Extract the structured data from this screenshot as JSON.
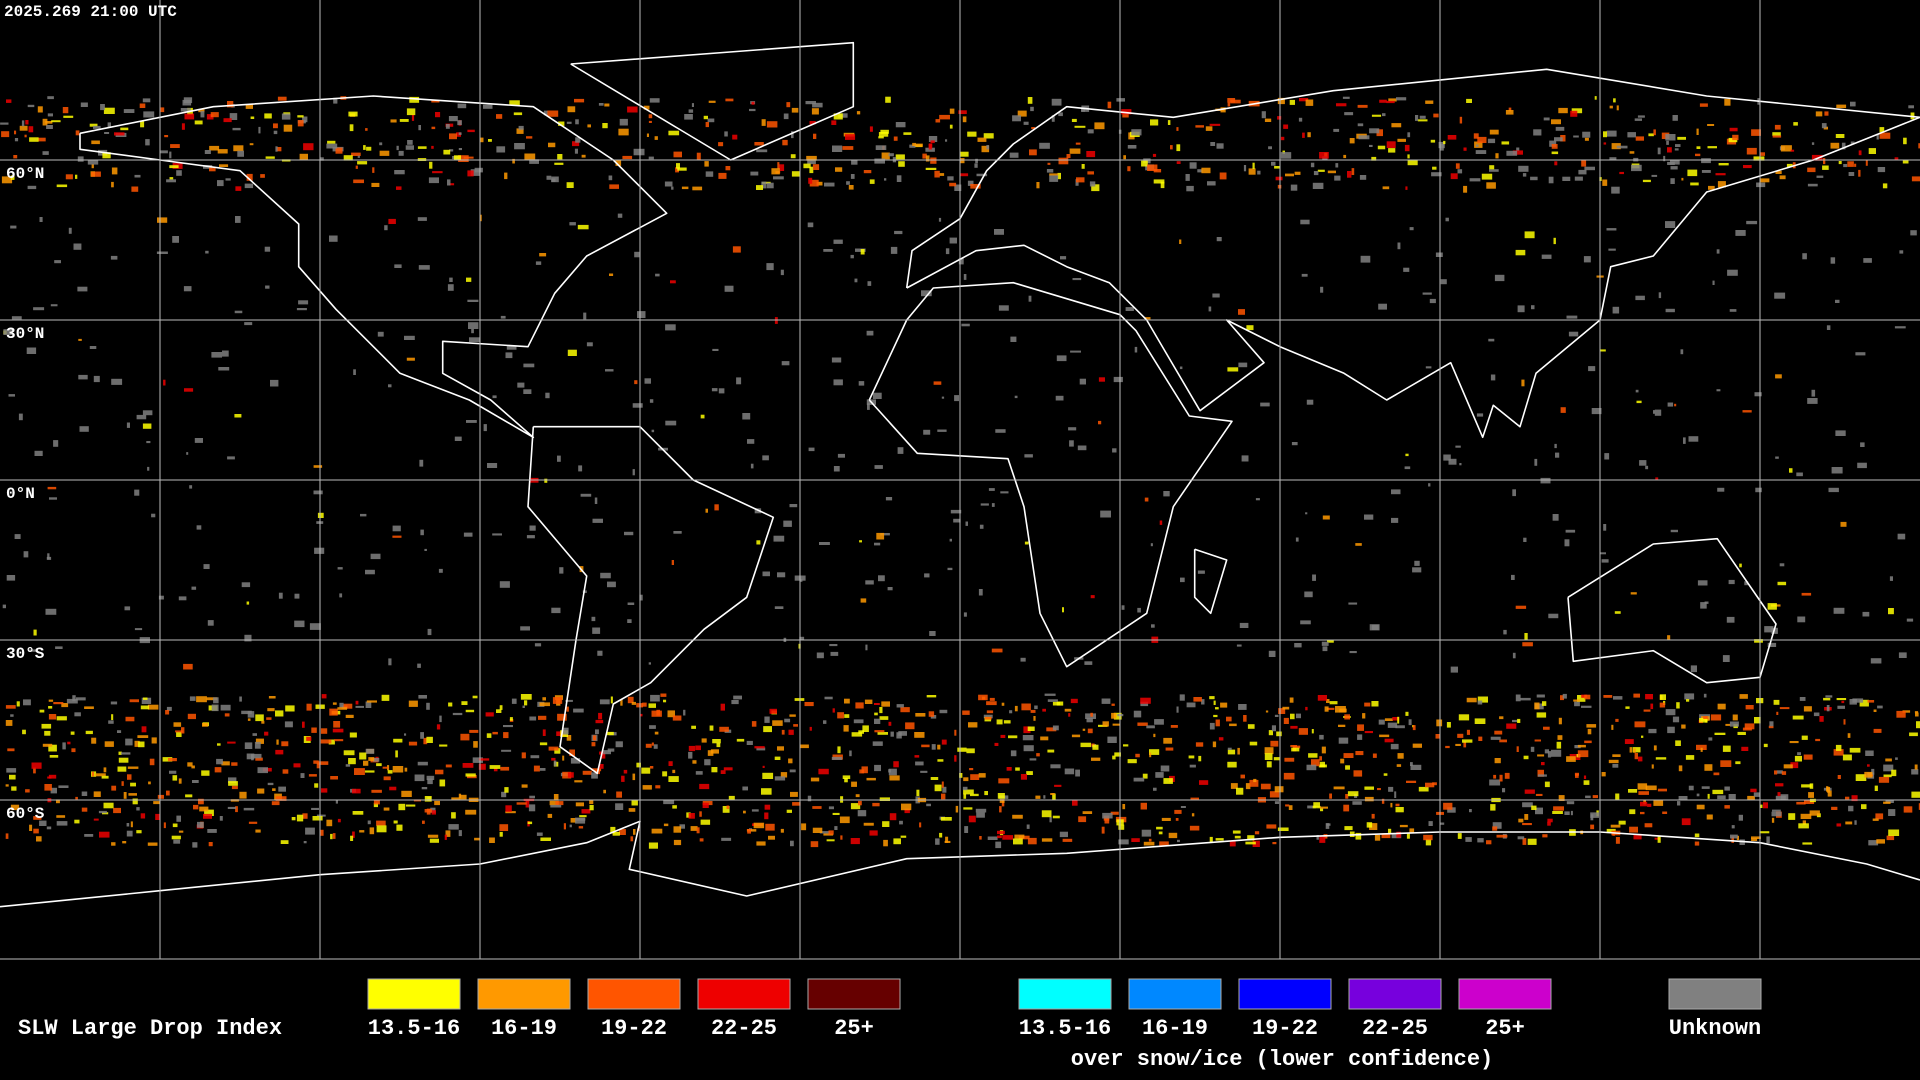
{
  "timestamp": "2025.269 21:00 UTC",
  "latitude_labels": [
    "60°N",
    "30°N",
    "0°N",
    "30°S",
    "60°S"
  ],
  "legend": {
    "title": "SLW Large Drop Index",
    "items": [
      {
        "label": "13.5-16",
        "color": "#ffff00"
      },
      {
        "label": "16-19",
        "color": "#ff9900"
      },
      {
        "label": "19-22",
        "color": "#ff5500"
      },
      {
        "label": "22-25",
        "color": "#ee0000"
      },
      {
        "label": "25+",
        "color": "#660000"
      }
    ],
    "snow_items": [
      {
        "label": "13.5-16",
        "color": "#00ffff"
      },
      {
        "label": "16-19",
        "color": "#0088ff"
      },
      {
        "label": "19-22",
        "color": "#0000ff"
      },
      {
        "label": "22-25",
        "color": "#7700dd"
      },
      {
        "label": "25+",
        "color": "#cc00cc"
      }
    ],
    "snow_caption": "over snow/ice (lower confidence)",
    "unknown": {
      "label": "Unknown",
      "color": "#808080"
    }
  }
}
